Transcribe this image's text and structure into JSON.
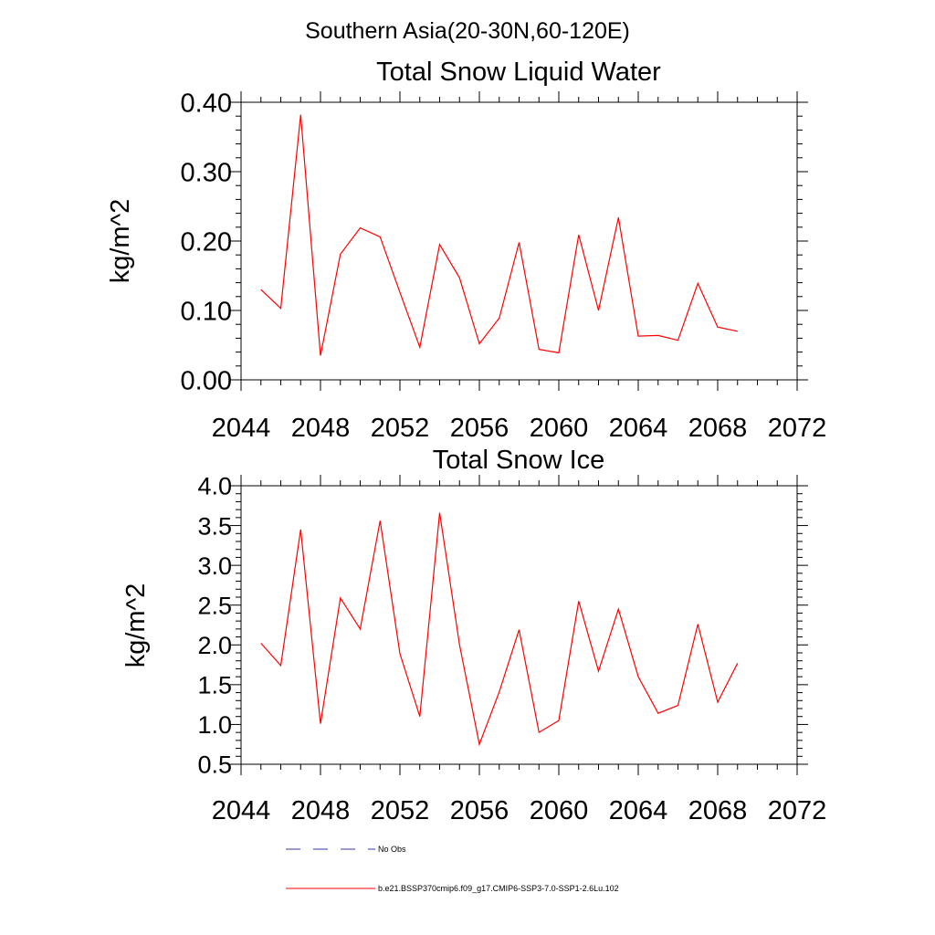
{
  "figure": {
    "title": "Southern Asia(20-30N,60-120E)"
  },
  "chart_data": [
    {
      "type": "line",
      "title": "Total Snow Liquid Water",
      "xlabel": "",
      "ylabel": "kg/m^2",
      "xlim": [
        2044,
        2072
      ],
      "ylim": [
        0.0,
        0.4
      ],
      "xticks": [
        "2044",
        "2048",
        "2052",
        "2056",
        "2060",
        "2064",
        "2068",
        "2072"
      ],
      "yticks": [
        "0.00",
        "0.10",
        "0.20",
        "0.30",
        "0.40"
      ],
      "series": [
        {
          "color": "#ff0000",
          "x": [
            2045,
            2046,
            2047,
            2048,
            2049,
            2050,
            2051,
            2052,
            2053,
            2054,
            2055,
            2056,
            2057,
            2058,
            2059,
            2060,
            2061,
            2062,
            2063,
            2064,
            2065,
            2066,
            2067,
            2068,
            2069
          ],
          "y": [
            0.13,
            0.103,
            0.382,
            0.035,
            0.181,
            0.219,
            0.206,
            0.126,
            0.047,
            0.195,
            0.147,
            0.052,
            0.089,
            0.198,
            0.044,
            0.039,
            0.209,
            0.1,
            0.234,
            0.063,
            0.064,
            0.057,
            0.139,
            0.076,
            0.07
          ]
        }
      ]
    },
    {
      "type": "line",
      "title": "Total Snow Ice",
      "xlabel": "",
      "ylabel": "kg/m^2",
      "xlim": [
        2044,
        2072
      ],
      "ylim": [
        0.5,
        4.0
      ],
      "xticks": [
        "2044",
        "2048",
        "2052",
        "2056",
        "2060",
        "2064",
        "2068",
        "2072"
      ],
      "yticks": [
        "0.5",
        "1.0",
        "1.5",
        "2.0",
        "2.5",
        "3.0",
        "3.5",
        "4.0"
      ],
      "series": [
        {
          "color": "#ff0000",
          "x": [
            2045,
            2046,
            2047,
            2048,
            2049,
            2050,
            2051,
            2052,
            2053,
            2054,
            2055,
            2056,
            2057,
            2058,
            2059,
            2060,
            2061,
            2062,
            2063,
            2064,
            2065,
            2066,
            2067,
            2068,
            2069
          ],
          "y": [
            2.02,
            1.74,
            3.45,
            1.01,
            2.59,
            2.2,
            3.56,
            1.89,
            1.1,
            3.66,
            2.0,
            0.75,
            1.41,
            2.19,
            0.9,
            1.05,
            2.55,
            1.67,
            2.45,
            1.6,
            1.14,
            1.24,
            2.26,
            1.28,
            1.77
          ]
        }
      ]
    }
  ],
  "legend": {
    "items": [
      {
        "label": "No Obs",
        "color": "#3333aa",
        "style": "dashed"
      },
      {
        "label": "b.e21.BSSP370cmip6.f09_g17.CMIP6-SSP3-7.0-SSP1-2.6Lu.102",
        "color": "#ff0000",
        "style": "solid"
      }
    ]
  }
}
